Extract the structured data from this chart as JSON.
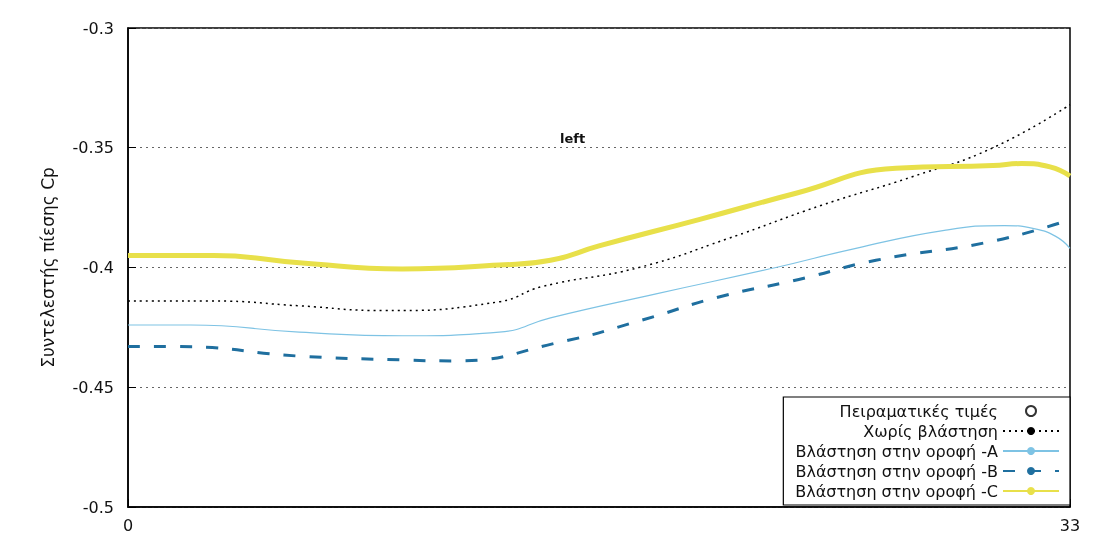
{
  "chart_data": {
    "type": "line",
    "ylabel": "Συντελεστής πίεσης Cp",
    "xlim": [
      0,
      33
    ],
    "xticks": [
      0,
      33
    ],
    "ylim": [
      -0.5,
      -0.3
    ],
    "yticks": [
      -0.5,
      -0.45,
      -0.4,
      -0.35,
      -0.3
    ],
    "grid": "y",
    "legend": "bottom right",
    "annotations": [
      "left"
    ],
    "series": [
      {
        "name": "Πειραματικές τιμές",
        "type": "scatter",
        "marker": "circle",
        "color": "#000000"
      },
      {
        "name": "Χωρίς βλάστηση",
        "color": "#000000",
        "line_style": "dotted",
        "x": [
          0,
          3,
          6,
          9,
          13,
          14.5,
          17.9,
          21,
          24.3,
          27.5,
          30.3,
          33
        ],
        "values": [
          -0.414,
          -0.414,
          -0.416,
          -0.418,
          -0.4143,
          -0.408,
          -0.4,
          -0.388,
          -0.374,
          -0.362,
          -0.35,
          -0.332
        ]
      },
      {
        "name": "Βλάστηση στην οροφή -A",
        "color": "#7ec3e4",
        "line_style": "solid",
        "x": [
          0,
          2.2,
          6,
          9.6,
          13,
          14.8,
          18.5,
          22.7,
          25.5,
          28.6,
          30.7,
          31.7,
          32.5,
          33
        ],
        "values": [
          -0.424,
          -0.424,
          -0.427,
          -0.4285,
          -0.427,
          -0.421,
          -0.411,
          -0.4,
          -0.392,
          -0.3845,
          -0.3825,
          -0.3837,
          -0.387,
          -0.392
        ]
      },
      {
        "name": "Βλάστηση στην οροφή -B",
        "color": "#1f6f9f",
        "line_style": "dashed",
        "x": [
          0,
          1.7,
          6,
          9.6,
          11.4,
          15.2,
          18,
          20.7,
          23.5,
          26.2,
          30.3,
          33
        ],
        "values": [
          -0.433,
          -0.433,
          -0.437,
          -0.4386,
          -0.439,
          -0.431,
          -0.422,
          -0.4123,
          -0.405,
          -0.397,
          -0.389,
          -0.38
        ]
      },
      {
        "name": "Βλάστηση στην οροφή -C",
        "color": "#e8e04a",
        "line_style": "solid",
        "x": [
          0,
          3,
          6,
          9.6,
          13,
          14.8,
          16.5,
          20,
          23.4,
          26.9,
          30.3,
          31.3,
          32.3,
          33
        ],
        "values": [
          -0.395,
          -0.395,
          -0.398,
          -0.4006,
          -0.399,
          -0.397,
          -0.391,
          -0.38,
          -0.369,
          -0.3586,
          -0.3574,
          -0.3566,
          -0.358,
          -0.3618
        ]
      }
    ]
  }
}
